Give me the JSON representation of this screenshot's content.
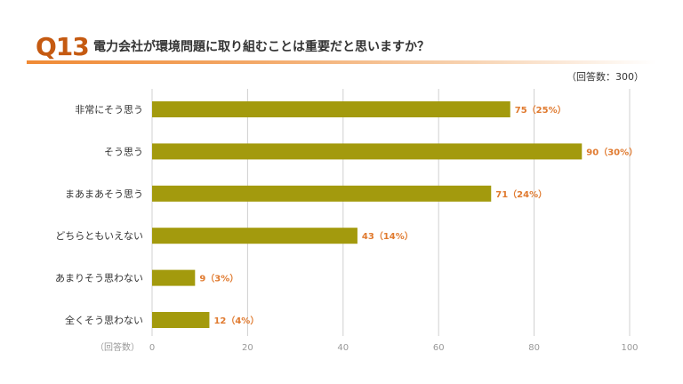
{
  "header": {
    "question_number": "Q13",
    "question_text": "電力会社が環境問題に取り組むことは重要だと思いますか？",
    "respondents": "（回答数：300）"
  },
  "colors": {
    "bar": "#a39a0d",
    "accent": "#c55a11",
    "value_label": "#e07a2f",
    "grid": "#d0d0d0"
  },
  "chart_data": {
    "type": "bar",
    "orientation": "horizontal",
    "categories": [
      "非常にそう思う",
      "そう思う",
      "まあまあそう思う",
      "どちらともいえない",
      "あまりそう思わない",
      "全くそう思わない"
    ],
    "values": [
      75,
      90,
      71,
      43,
      9,
      12
    ],
    "value_labels": [
      "75（25%）",
      "90（30%）",
      "71（24%）",
      "43（14%）",
      "9（3%）",
      "12（4%）"
    ],
    "xlabel": "（回答数）",
    "xlim": [
      0,
      100
    ],
    "xticks": [
      0,
      20,
      40,
      60,
      80,
      100
    ],
    "grid": true
  }
}
